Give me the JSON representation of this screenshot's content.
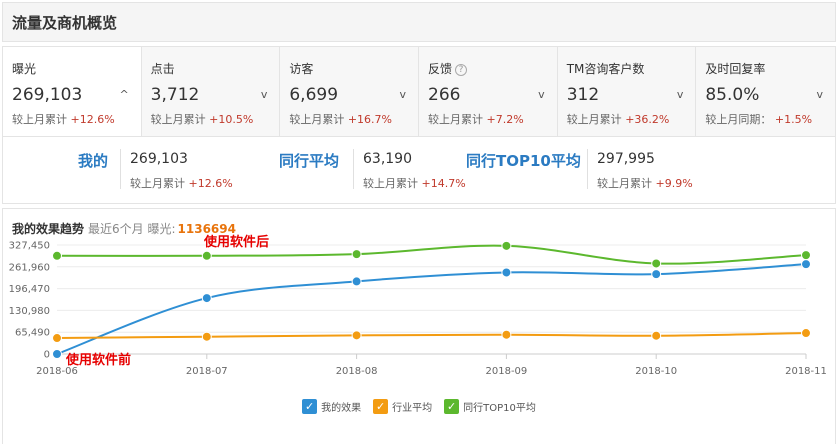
{
  "header": {
    "title": "流量及商机概览"
  },
  "metrics": [
    {
      "name": "曝光",
      "value": "269,103",
      "change_label": "较上月累计",
      "change": "+12.6%",
      "chevron": "^",
      "active": true
    },
    {
      "name": "点击",
      "value": "3,712",
      "change_label": "较上月累计",
      "change": "+10.5%",
      "chevron": "v"
    },
    {
      "name": "访客",
      "value": "6,699",
      "change_label": "较上月累计",
      "change": "+16.7%",
      "chevron": "v"
    },
    {
      "name": "反馈",
      "value": "266",
      "change_label": "较上月累计",
      "change": "+7.2%",
      "chevron": "v",
      "help_icon": "?"
    },
    {
      "name": "TM咨询客户数",
      "value": "312",
      "change_label": "较上月累计",
      "change": "+36.2%",
      "chevron": "v"
    },
    {
      "name": "及时回复率",
      "value": "85.0%",
      "change_label": "较上月同期：",
      "change": "+1.5%",
      "chevron": "v"
    }
  ],
  "compare": {
    "mine": {
      "label": "我的",
      "value": "269,103",
      "change_label": "较上月累计",
      "change": "+12.6%"
    },
    "avg": {
      "label": "同行平均",
      "value": "63,190",
      "change_label": "较上月累计",
      "change": "+14.7%"
    },
    "top10": {
      "label": "同行TOP10平均",
      "value": "297,995",
      "change_label": "较上月累计",
      "change": "+9.9%"
    }
  },
  "chart_header": {
    "title": "我的效果趋势",
    "sub": "最近6个月 曝光:",
    "total": "1136694"
  },
  "annotations": {
    "after": "使用软件后",
    "before": "使用软件前"
  },
  "colors": {
    "mine": "#2f8fd4",
    "avg": "#f39c12",
    "top10": "#5cb82e"
  },
  "chart_data": {
    "type": "line",
    "x": [
      "2018-06",
      "2018-07",
      "2018-08",
      "2018-09",
      "2018-10",
      "2018-11"
    ],
    "y_ticks": [
      "327,450",
      "261,960",
      "196,470",
      "130,980",
      "65,490",
      "0"
    ],
    "ylim": [
      0,
      327450
    ],
    "legend_position": "bottom",
    "series": [
      {
        "name": "我的效果",
        "color": "#2f8fd4",
        "values": [
          0,
          168000,
          218000,
          245000,
          240000,
          270000
        ]
      },
      {
        "name": "行业平均",
        "color": "#f39c12",
        "values": [
          48000,
          52000,
          56000,
          58000,
          55000,
          63000
        ]
      },
      {
        "name": "同行TOP10平均",
        "color": "#5cb82e",
        "values": [
          295000,
          295000,
          300000,
          325000,
          272000,
          297000
        ]
      }
    ]
  }
}
